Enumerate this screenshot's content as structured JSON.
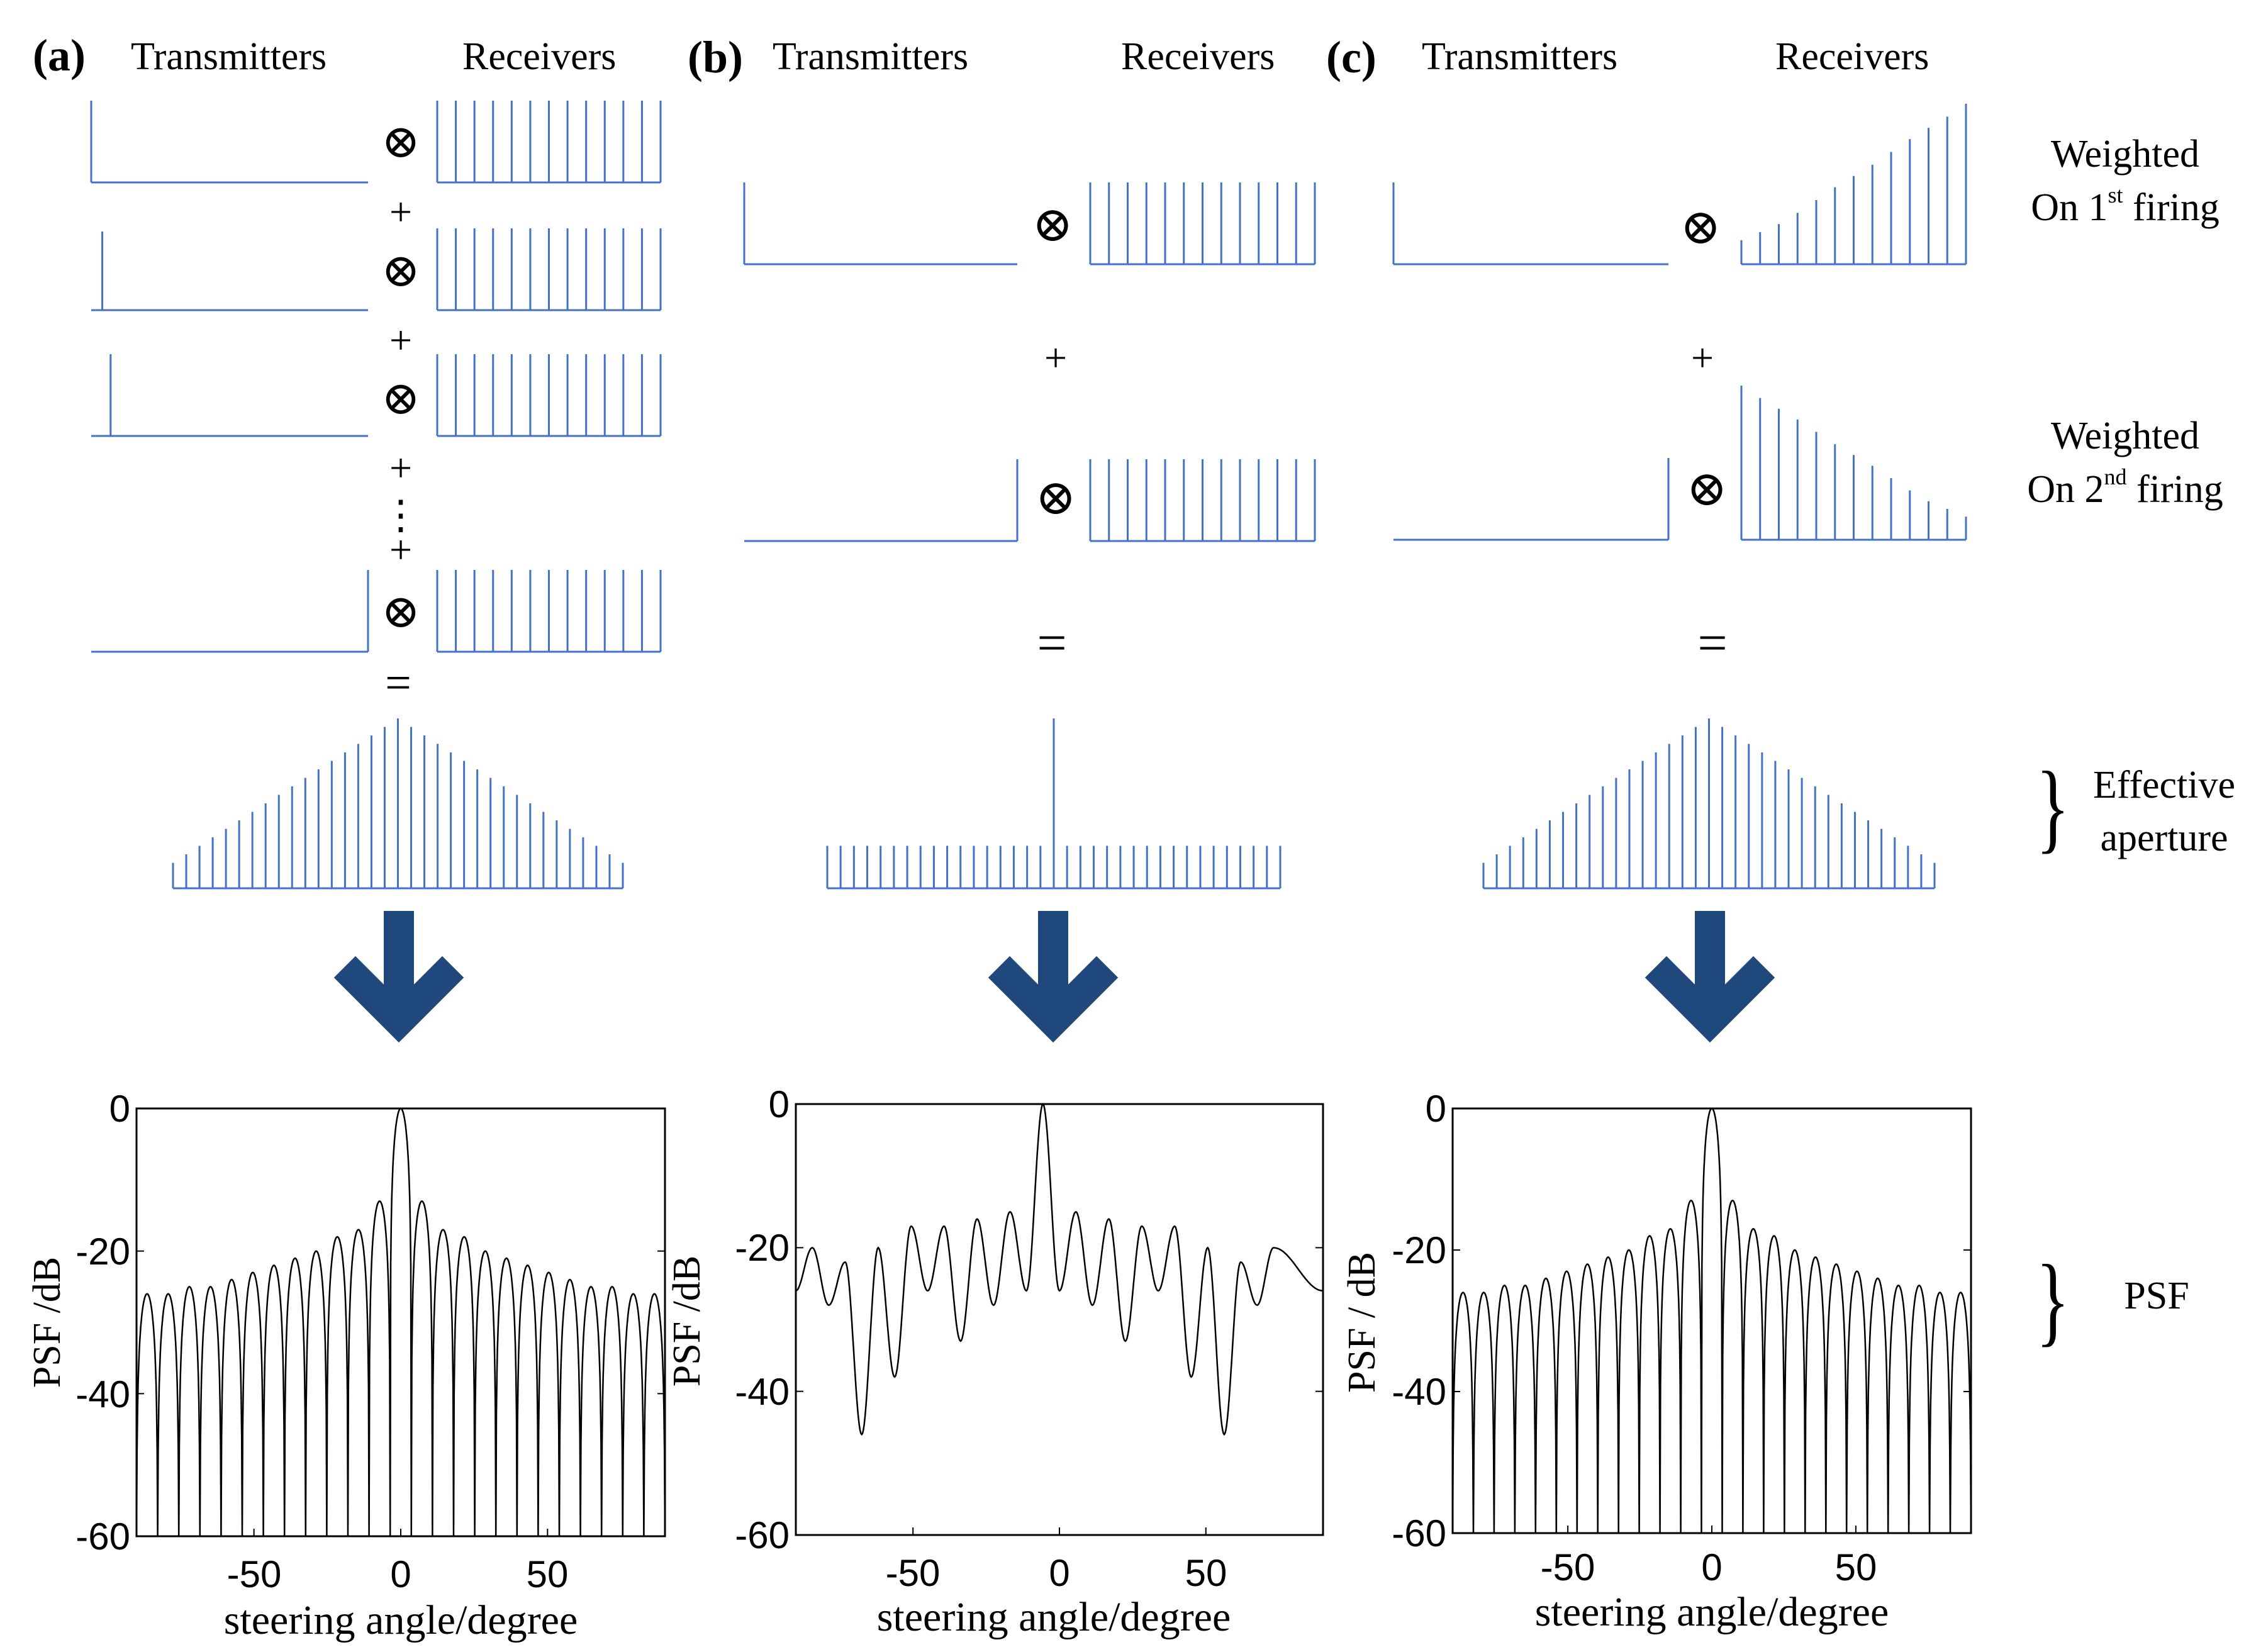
{
  "colors": {
    "stem": "#4472c4",
    "arrow": "#1f497d",
    "arrow_edge": "#ffffff",
    "curve": "#000000",
    "text": "#000000"
  },
  "symbols": {
    "op_times": "⊗",
    "op_plus": "+",
    "op_equals": "=",
    "op_dots": "⋮",
    "brace": "}"
  },
  "panels": [
    {
      "id": "a",
      "label": "(a)",
      "tx_title": "Transmitters",
      "rx_title": "Receivers",
      "effective_aperture": [
        0.15,
        0.2,
        0.25,
        0.3,
        0.35,
        0.4,
        0.45,
        0.5,
        0.55,
        0.6,
        0.65,
        0.7,
        0.75,
        0.8,
        0.85,
        0.9,
        0.95,
        1.0,
        0.95,
        0.9,
        0.85,
        0.8,
        0.75,
        0.7,
        0.65,
        0.6,
        0.55,
        0.5,
        0.45,
        0.4,
        0.35,
        0.3,
        0.25,
        0.2,
        0.15
      ],
      "chart_data": {
        "type": "line",
        "title": "",
        "xlabel": "steering angle/degree",
        "ylabel": "PSF /dB",
        "xlim": [
          -90,
          90
        ],
        "ylim": [
          -60,
          0
        ],
        "x_ticks": [
          "-50",
          "0",
          "50"
        ],
        "y_ticks": [
          "0",
          "-20",
          "-40",
          "-60"
        ],
        "lobe_peaks": [
          -26,
          -26,
          -25,
          -25,
          -24,
          -23,
          -22,
          -21,
          -20,
          -18,
          -17,
          -13,
          0,
          -13,
          -17,
          -18,
          -20,
          -21,
          -22,
          -23,
          -24,
          -25,
          -25,
          -26,
          -26
        ]
      }
    },
    {
      "id": "b",
      "label": "(b)",
      "tx_title": "Transmitters",
      "rx_title": "Receivers",
      "effective_aperture": [
        0.25,
        0.25,
        0.25,
        0.25,
        0.25,
        0.25,
        0.25,
        0.25,
        0.25,
        0.25,
        0.25,
        0.25,
        0.25,
        0.25,
        0.25,
        0.25,
        0.25,
        1.0,
        0.25,
        0.25,
        0.25,
        0.25,
        0.25,
        0.25,
        0.25,
        0.25,
        0.25,
        0.25,
        0.25,
        0.25,
        0.25,
        0.25,
        0.25,
        0.25,
        0.25
      ],
      "chart_data": {
        "type": "line",
        "title": "",
        "xlabel": "steering angle/degree",
        "ylabel": "PSF /dB",
        "xlim": [
          -90,
          90
        ],
        "ylim": [
          -60,
          0
        ],
        "x_ticks": [
          "-50",
          "0",
          "50"
        ],
        "y_ticks": [
          "0",
          "-20",
          "-40",
          "-60"
        ],
        "lobe_peaks": [
          -20,
          -22,
          -20,
          -17,
          -17,
          -16,
          -15,
          0,
          -15,
          -16,
          -17,
          -17,
          -20,
          -22,
          -20
        ],
        "nulls": [
          -28,
          -46,
          -38,
          -26,
          -33,
          -28,
          -26,
          -26,
          -28,
          -33,
          -26,
          -38,
          -46,
          -28
        ],
        "edge_level": -26
      }
    },
    {
      "id": "c",
      "label": "(c)",
      "tx_title": "Transmitters",
      "rx_title": "Receivers",
      "effective_aperture": [
        0.15,
        0.2,
        0.25,
        0.3,
        0.35,
        0.4,
        0.45,
        0.5,
        0.55,
        0.6,
        0.65,
        0.7,
        0.75,
        0.8,
        0.85,
        0.9,
        0.95,
        1.0,
        0.95,
        0.9,
        0.85,
        0.8,
        0.75,
        0.7,
        0.65,
        0.6,
        0.55,
        0.5,
        0.45,
        0.4,
        0.35,
        0.3,
        0.25,
        0.2,
        0.15
      ],
      "rx_weights_first": [
        0.15,
        0.2,
        0.25,
        0.32,
        0.4,
        0.48,
        0.55,
        0.62,
        0.7,
        0.78,
        0.85,
        0.92,
        1.0
      ],
      "rx_weights_second": [
        1.0,
        0.92,
        0.85,
        0.78,
        0.7,
        0.62,
        0.55,
        0.48,
        0.4,
        0.32,
        0.25,
        0.2,
        0.15
      ],
      "chart_data": {
        "type": "line",
        "title": "",
        "xlabel": "steering angle/degree",
        "ylabel": "PSF / dB",
        "xlim": [
          -90,
          90
        ],
        "ylim": [
          -60,
          0
        ],
        "x_ticks": [
          "-50",
          "0",
          "50"
        ],
        "y_ticks": [
          "0",
          "-20",
          "-40",
          "-60"
        ],
        "lobe_peaks": [
          -26,
          -26,
          -25,
          -25,
          -24,
          -23,
          -22,
          -21,
          -20,
          -18,
          -17,
          -13,
          0,
          -13,
          -17,
          -18,
          -20,
          -21,
          -22,
          -23,
          -24,
          -25,
          -25,
          -26,
          -26
        ]
      }
    }
  ],
  "side_labels": {
    "first_line1": "Weighted",
    "first_line2": "On 1",
    "first_sup": "st",
    "first_line2b": " firing",
    "second_line1": "Weighted",
    "second_line2": "On 2",
    "second_sup": "nd",
    "second_line2b": " firing",
    "aperture_line1": "Effective",
    "aperture_line2": "aperture",
    "psf": "PSF"
  }
}
